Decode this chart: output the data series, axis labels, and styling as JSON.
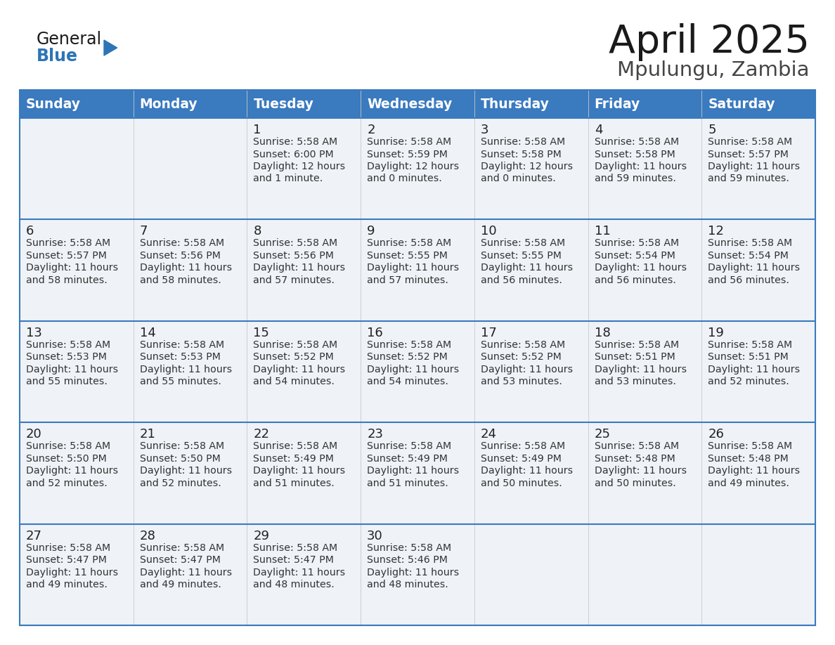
{
  "title": "April 2025",
  "subtitle": "Mpulungu, Zambia",
  "header_color": "#3a7abf",
  "header_text_color": "#ffffff",
  "cell_bg_light": "#eff3f8",
  "cell_bg_white": "#ffffff",
  "border_color": "#3a7abf",
  "days_of_week": [
    "Sunday",
    "Monday",
    "Tuesday",
    "Wednesday",
    "Thursday",
    "Friday",
    "Saturday"
  ],
  "general_text_color": "#222222",
  "blue_color": "#2e75b6",
  "triangle_color": "#2e75b6",
  "cell_text_color": "#333333",
  "calendar_data": [
    [
      {
        "day": "",
        "sunrise": "",
        "sunset": "",
        "daylight": ""
      },
      {
        "day": "",
        "sunrise": "",
        "sunset": "",
        "daylight": ""
      },
      {
        "day": "1",
        "sunrise": "5:58 AM",
        "sunset": "6:00 PM",
        "daylight": "12 hours",
        "daylight2": "and 1 minute."
      },
      {
        "day": "2",
        "sunrise": "5:58 AM",
        "sunset": "5:59 PM",
        "daylight": "12 hours",
        "daylight2": "and 0 minutes."
      },
      {
        "day": "3",
        "sunrise": "5:58 AM",
        "sunset": "5:58 PM",
        "daylight": "12 hours",
        "daylight2": "and 0 minutes."
      },
      {
        "day": "4",
        "sunrise": "5:58 AM",
        "sunset": "5:58 PM",
        "daylight": "11 hours",
        "daylight2": "and 59 minutes."
      },
      {
        "day": "5",
        "sunrise": "5:58 AM",
        "sunset": "5:57 PM",
        "daylight": "11 hours",
        "daylight2": "and 59 minutes."
      }
    ],
    [
      {
        "day": "6",
        "sunrise": "5:58 AM",
        "sunset": "5:57 PM",
        "daylight": "11 hours",
        "daylight2": "and 58 minutes."
      },
      {
        "day": "7",
        "sunrise": "5:58 AM",
        "sunset": "5:56 PM",
        "daylight": "11 hours",
        "daylight2": "and 58 minutes."
      },
      {
        "day": "8",
        "sunrise": "5:58 AM",
        "sunset": "5:56 PM",
        "daylight": "11 hours",
        "daylight2": "and 57 minutes."
      },
      {
        "day": "9",
        "sunrise": "5:58 AM",
        "sunset": "5:55 PM",
        "daylight": "11 hours",
        "daylight2": "and 57 minutes."
      },
      {
        "day": "10",
        "sunrise": "5:58 AM",
        "sunset": "5:55 PM",
        "daylight": "11 hours",
        "daylight2": "and 56 minutes."
      },
      {
        "day": "11",
        "sunrise": "5:58 AM",
        "sunset": "5:54 PM",
        "daylight": "11 hours",
        "daylight2": "and 56 minutes."
      },
      {
        "day": "12",
        "sunrise": "5:58 AM",
        "sunset": "5:54 PM",
        "daylight": "11 hours",
        "daylight2": "and 56 minutes."
      }
    ],
    [
      {
        "day": "13",
        "sunrise": "5:58 AM",
        "sunset": "5:53 PM",
        "daylight": "11 hours",
        "daylight2": "and 55 minutes."
      },
      {
        "day": "14",
        "sunrise": "5:58 AM",
        "sunset": "5:53 PM",
        "daylight": "11 hours",
        "daylight2": "and 55 minutes."
      },
      {
        "day": "15",
        "sunrise": "5:58 AM",
        "sunset": "5:52 PM",
        "daylight": "11 hours",
        "daylight2": "and 54 minutes."
      },
      {
        "day": "16",
        "sunrise": "5:58 AM",
        "sunset": "5:52 PM",
        "daylight": "11 hours",
        "daylight2": "and 54 minutes."
      },
      {
        "day": "17",
        "sunrise": "5:58 AM",
        "sunset": "5:52 PM",
        "daylight": "11 hours",
        "daylight2": "and 53 minutes."
      },
      {
        "day": "18",
        "sunrise": "5:58 AM",
        "sunset": "5:51 PM",
        "daylight": "11 hours",
        "daylight2": "and 53 minutes."
      },
      {
        "day": "19",
        "sunrise": "5:58 AM",
        "sunset": "5:51 PM",
        "daylight": "11 hours",
        "daylight2": "and 52 minutes."
      }
    ],
    [
      {
        "day": "20",
        "sunrise": "5:58 AM",
        "sunset": "5:50 PM",
        "daylight": "11 hours",
        "daylight2": "and 52 minutes."
      },
      {
        "day": "21",
        "sunrise": "5:58 AM",
        "sunset": "5:50 PM",
        "daylight": "11 hours",
        "daylight2": "and 52 minutes."
      },
      {
        "day": "22",
        "sunrise": "5:58 AM",
        "sunset": "5:49 PM",
        "daylight": "11 hours",
        "daylight2": "and 51 minutes."
      },
      {
        "day": "23",
        "sunrise": "5:58 AM",
        "sunset": "5:49 PM",
        "daylight": "11 hours",
        "daylight2": "and 51 minutes."
      },
      {
        "day": "24",
        "sunrise": "5:58 AM",
        "sunset": "5:49 PM",
        "daylight": "11 hours",
        "daylight2": "and 50 minutes."
      },
      {
        "day": "25",
        "sunrise": "5:58 AM",
        "sunset": "5:48 PM",
        "daylight": "11 hours",
        "daylight2": "and 50 minutes."
      },
      {
        "day": "26",
        "sunrise": "5:58 AM",
        "sunset": "5:48 PM",
        "daylight": "11 hours",
        "daylight2": "and 49 minutes."
      }
    ],
    [
      {
        "day": "27",
        "sunrise": "5:58 AM",
        "sunset": "5:47 PM",
        "daylight": "11 hours",
        "daylight2": "and 49 minutes."
      },
      {
        "day": "28",
        "sunrise": "5:58 AM",
        "sunset": "5:47 PM",
        "daylight": "11 hours",
        "daylight2": "and 49 minutes."
      },
      {
        "day": "29",
        "sunrise": "5:58 AM",
        "sunset": "5:47 PM",
        "daylight": "11 hours",
        "daylight2": "and 48 minutes."
      },
      {
        "day": "30",
        "sunrise": "5:58 AM",
        "sunset": "5:46 PM",
        "daylight": "11 hours",
        "daylight2": "and 48 minutes."
      },
      {
        "day": "",
        "sunrise": "",
        "sunset": "",
        "daylight": "",
        "daylight2": ""
      },
      {
        "day": "",
        "sunrise": "",
        "sunset": "",
        "daylight": "",
        "daylight2": ""
      },
      {
        "day": "",
        "sunrise": "",
        "sunset": "",
        "daylight": "",
        "daylight2": ""
      }
    ]
  ]
}
